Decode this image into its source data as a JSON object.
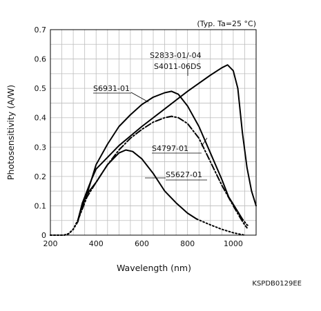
{
  "chart_data": {
    "type": "line",
    "condition_note": "(Typ. Ta=25 °C)",
    "xlabel": "Wavelength (nm)",
    "ylabel": "Photosensitivity (A/W)",
    "xlim": [
      200,
      1100
    ],
    "ylim": [
      0,
      0.7
    ],
    "x_ticks": [
      200,
      400,
      600,
      800,
      1000
    ],
    "y_ticks": [
      0,
      0.1,
      0.2,
      0.3,
      0.4,
      0.5,
      0.6,
      0.7
    ],
    "grid": true,
    "series": [
      {
        "name": "S2833-01/-04\nS4011-06DS",
        "style": "solid",
        "segments": [
          {
            "style": "dotted",
            "points": [
              [
                200,
                0
              ],
              [
                260,
                0
              ],
              [
                280,
                0.005
              ],
              [
                300,
                0.02
              ],
              [
                320,
                0.045
              ]
            ]
          },
          {
            "style": "solid",
            "points": [
              [
                320,
                0.045
              ],
              [
                340,
                0.11
              ],
              [
                360,
                0.15
              ],
              [
                380,
                0.19
              ],
              [
                400,
                0.225
              ],
              [
                500,
                0.305
              ],
              [
                600,
                0.37
              ],
              [
                700,
                0.43
              ],
              [
                800,
                0.49
              ],
              [
                900,
                0.545
              ],
              [
                950,
                0.57
              ],
              [
                975,
                0.58
              ],
              [
                1000,
                0.56
              ],
              [
                1020,
                0.5
              ],
              [
                1040,
                0.35
              ],
              [
                1060,
                0.23
              ],
              [
                1080,
                0.15
              ],
              [
                1100,
                0.1
              ]
            ]
          }
        ]
      },
      {
        "name": "S6931-01",
        "style": "solid",
        "segments": [
          {
            "style": "dotted",
            "points": [
              [
                200,
                0
              ],
              [
                260,
                0
              ],
              [
                280,
                0.005
              ],
              [
                300,
                0.02
              ],
              [
                320,
                0.05
              ]
            ]
          },
          {
            "style": "solid",
            "points": [
              [
                320,
                0.05
              ],
              [
                340,
                0.11
              ],
              [
                360,
                0.14
              ],
              [
                380,
                0.19
              ],
              [
                400,
                0.24
              ],
              [
                450,
                0.31
              ],
              [
                500,
                0.37
              ],
              [
                550,
                0.41
              ],
              [
                600,
                0.445
              ],
              [
                650,
                0.47
              ],
              [
                700,
                0.485
              ],
              [
                730,
                0.49
              ],
              [
                760,
                0.48
              ],
              [
                800,
                0.44
              ],
              [
                850,
                0.37
              ],
              [
                900,
                0.28
              ],
              [
                950,
                0.19
              ],
              [
                980,
                0.13
              ],
              [
                1000,
                0.105
              ],
              [
                1020,
                0.08
              ],
              [
                1040,
                0.055
              ]
            ]
          },
          {
            "style": "dotted",
            "points": [
              [
                1040,
                0.055
              ],
              [
                1060,
                0.035
              ],
              [
                1070,
                0.03
              ]
            ]
          }
        ]
      },
      {
        "name": "S4797-01",
        "style": "dash-dot",
        "segments": [
          {
            "style": "dotted",
            "points": [
              [
                200,
                0
              ],
              [
                260,
                0
              ],
              [
                280,
                0.005
              ],
              [
                300,
                0.02
              ],
              [
                320,
                0.05
              ]
            ]
          },
          {
            "style": "dashdot",
            "points": [
              [
                320,
                0.05
              ],
              [
                340,
                0.09
              ],
              [
                360,
                0.13
              ],
              [
                400,
                0.18
              ],
              [
                450,
                0.24
              ],
              [
                500,
                0.29
              ],
              [
                550,
                0.33
              ],
              [
                600,
                0.36
              ],
              [
                650,
                0.385
              ],
              [
                700,
                0.4
              ],
              [
                730,
                0.405
              ],
              [
                760,
                0.4
              ],
              [
                800,
                0.38
              ],
              [
                850,
                0.33
              ],
              [
                900,
                0.25
              ],
              [
                950,
                0.17
              ],
              [
                1000,
                0.1
              ],
              [
                1030,
                0.06
              ],
              [
                1050,
                0.035
              ],
              [
                1060,
                0.025
              ]
            ]
          }
        ]
      },
      {
        "name": "S5627-01",
        "style": "solid",
        "segments": [
          {
            "style": "dotted",
            "points": [
              [
                200,
                0
              ],
              [
                260,
                0
              ],
              [
                280,
                0.005
              ],
              [
                300,
                0.02
              ],
              [
                320,
                0.05
              ]
            ]
          },
          {
            "style": "solid",
            "points": [
              [
                320,
                0.05
              ],
              [
                340,
                0.1
              ],
              [
                360,
                0.14
              ],
              [
                400,
                0.18
              ],
              [
                450,
                0.24
              ],
              [
                500,
                0.28
              ],
              [
                530,
                0.29
              ],
              [
                560,
                0.285
              ],
              [
                600,
                0.26
              ],
              [
                650,
                0.21
              ],
              [
                700,
                0.15
              ],
              [
                750,
                0.11
              ],
              [
                800,
                0.075
              ],
              [
                840,
                0.055
              ]
            ]
          },
          {
            "style": "dotted",
            "points": [
              [
                840,
                0.055
              ],
              [
                900,
                0.035
              ],
              [
                950,
                0.02
              ],
              [
                1000,
                0.008
              ],
              [
                1050,
                0
              ]
            ]
          }
        ]
      }
    ],
    "annotations": [
      {
        "text": "S2833-01/-04",
        "series": "S2833-01/-04\nS4011-06DS"
      },
      {
        "text": "S4011-06DS",
        "series": "S2833-01/-04\nS4011-06DS"
      },
      {
        "text": "S6931-01",
        "series": "S6931-01"
      },
      {
        "text": "S4797-01",
        "series": "S4797-01"
      },
      {
        "text": "S5627-01",
        "series": "S5627-01"
      }
    ],
    "figure_code": "KSPDB0129EE"
  }
}
